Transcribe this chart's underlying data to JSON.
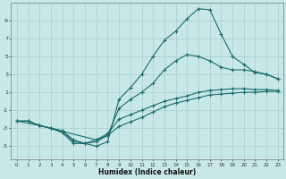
{
  "background_color": "#c8e8e8",
  "grid_color": "#a8cccc",
  "line_color": "#1a6b6b",
  "xlabel": "Humidex (Indice chaleur)",
  "xlim": [
    -0.5,
    23.5
  ],
  "ylim": [
    -6.5,
    11.0
  ],
  "xticks": [
    0,
    1,
    2,
    3,
    4,
    5,
    6,
    7,
    8,
    9,
    10,
    11,
    12,
    13,
    14,
    15,
    16,
    17,
    18,
    19,
    20,
    21,
    22,
    23
  ],
  "yticks": [
    -5,
    -3,
    -1,
    1,
    3,
    5,
    7,
    9
  ],
  "curve1_x": [
    0,
    1,
    2,
    3,
    4,
    5,
    6,
    7,
    8,
    9,
    10,
    11,
    12,
    13,
    14,
    15,
    16,
    17,
    18,
    19,
    20,
    21,
    22,
    23
  ],
  "curve1_y": [
    -2.2,
    -2.2,
    -2.7,
    -3.0,
    -3.5,
    -4.7,
    -4.7,
    -5.0,
    -4.5,
    0.2,
    1.5,
    3.0,
    5.0,
    6.8,
    7.8,
    9.2,
    10.3,
    10.2,
    7.5,
    5.0,
    4.1,
    3.2,
    3.0,
    2.5
  ],
  "curve2_x": [
    1,
    2,
    3,
    4,
    5,
    6,
    7,
    8,
    9,
    10,
    11,
    12,
    13,
    14,
    15,
    16,
    17,
    18,
    19,
    20,
    21,
    22,
    23
  ],
  "curve2_y": [
    -2.2,
    -2.7,
    -3.0,
    -3.3,
    -4.5,
    -4.7,
    -4.5,
    -3.8,
    -0.8,
    0.2,
    1.0,
    2.0,
    3.5,
    4.5,
    5.2,
    5.0,
    4.5,
    3.8,
    3.5,
    3.5,
    3.3,
    3.0,
    2.5
  ],
  "curve3_x": [
    0,
    1,
    2,
    3,
    4,
    5,
    6,
    7,
    8,
    9,
    10,
    11,
    12,
    13,
    14,
    15,
    16,
    17,
    18,
    19,
    20,
    21,
    22,
    23
  ],
  "curve3_y": [
    -2.2,
    -2.2,
    -2.7,
    -3.0,
    -3.3,
    -4.3,
    -4.7,
    -4.3,
    -3.6,
    -2.0,
    -1.5,
    -1.0,
    -0.5,
    0.0,
    0.3,
    0.6,
    1.0,
    1.2,
    1.3,
    1.4,
    1.4,
    1.3,
    1.3,
    1.2
  ],
  "curve4_x": [
    0,
    2,
    7,
    8,
    9,
    10,
    11,
    12,
    13,
    14,
    15,
    16,
    17,
    18,
    19,
    20,
    21,
    22,
    23
  ],
  "curve4_y": [
    -2.2,
    -2.7,
    -4.3,
    -3.8,
    -2.8,
    -2.3,
    -1.8,
    -1.2,
    -0.6,
    -0.2,
    0.1,
    0.4,
    0.7,
    0.8,
    0.9,
    1.0,
    1.0,
    1.1,
    1.1
  ]
}
